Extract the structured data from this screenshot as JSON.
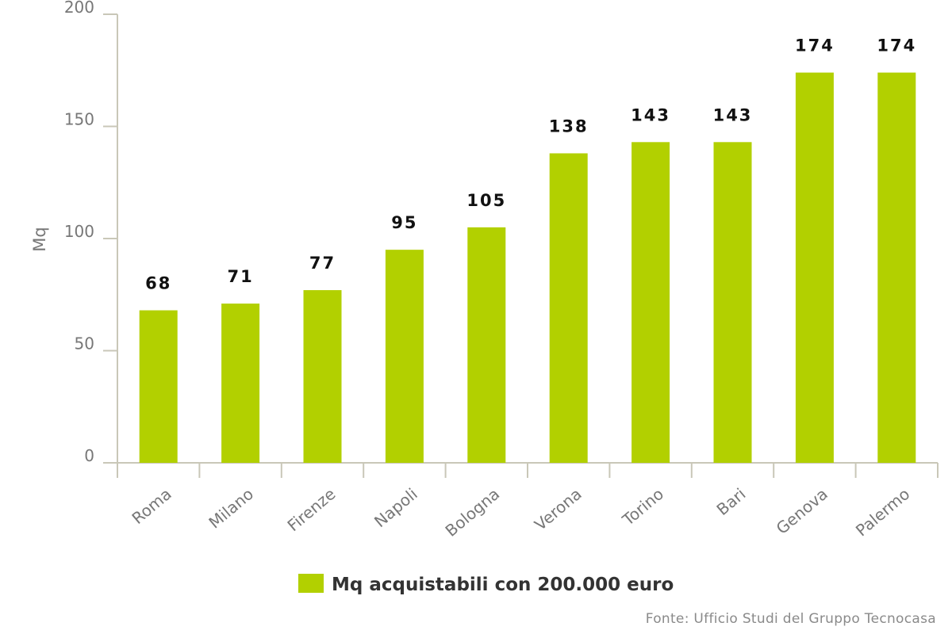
{
  "chart_data": {
    "type": "bar",
    "categories": [
      "Roma",
      "Milano",
      "Firenze",
      "Napoli",
      "Bologna",
      "Verona",
      "Torino",
      "Bari",
      "Genova",
      "Palermo"
    ],
    "series": [
      {
        "name": "Mq acquistabili con 200.000 euro",
        "values": [
          68,
          71,
          77,
          95,
          105,
          138,
          143,
          143,
          174,
          174
        ]
      }
    ],
    "data_labels": [
      "68",
      "71",
      "77",
      "95",
      "105",
      "138",
      "143",
      "143",
      "174",
      "174"
    ],
    "ylabel": "Mq",
    "xlabel": "",
    "ylim": [
      0,
      200
    ],
    "yticks": [
      "0",
      "50",
      "100",
      "150",
      "200"
    ],
    "bar_color": "#b2d000",
    "grid": false,
    "legend_position": "bottom-center"
  },
  "source": "Fonte: Ufficio Studi del Gruppo Tecnocasa"
}
